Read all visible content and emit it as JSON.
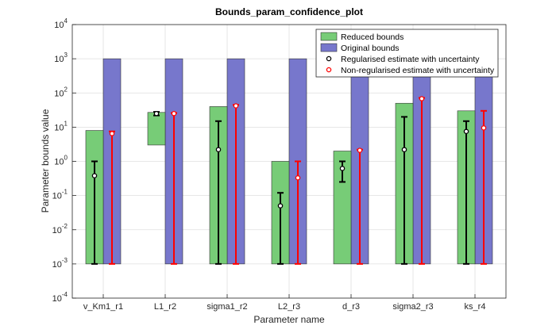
{
  "chart_data": {
    "type": "bar",
    "title": "Bounds_param_confidence_plot",
    "xlabel": "Parameter name",
    "ylabel": "Parameter bounds value",
    "yscale": "log",
    "ylim": [
      0.0001,
      10000
    ],
    "y_ticks": [
      {
        "value": 0.0001,
        "base": "10",
        "exp": "-4"
      },
      {
        "value": 0.001,
        "base": "10",
        "exp": "-3"
      },
      {
        "value": 0.01,
        "base": "10",
        "exp": "-2"
      },
      {
        "value": 0.1,
        "base": "10",
        "exp": "-1"
      },
      {
        "value": 1,
        "base": "10",
        "exp": "0"
      },
      {
        "value": 10,
        "base": "10",
        "exp": "1"
      },
      {
        "value": 100,
        "base": "10",
        "exp": "2"
      },
      {
        "value": 1000,
        "base": "10",
        "exp": "3"
      },
      {
        "value": 10000,
        "base": "10",
        "exp": "4"
      }
    ],
    "grid": true,
    "legend_position": "top-right",
    "categories": [
      "v_Km1_r1",
      "L1_r2",
      "sigma1_r2",
      "L2_r3",
      "d_r3",
      "sigma2_r3",
      "ks_r4"
    ],
    "series": [
      {
        "name": "Reduced bounds",
        "color": "#77cc77",
        "lower": [
          0.001,
          3,
          0.001,
          0.001,
          0.001,
          0.001,
          0.001
        ],
        "upper": [
          8,
          27,
          40,
          1,
          2,
          50,
          30
        ]
      },
      {
        "name": "Original bounds",
        "color": "#7777cc",
        "lower": [
          0.001,
          0.001,
          0.001,
          0.001,
          0.001,
          0.001,
          0.001
        ],
        "upper": [
          1000,
          1000,
          1000,
          1000,
          1000,
          1000,
          1000
        ]
      },
      {
        "name": "Regularised estimate with uncertainty",
        "color": "#000000",
        "values": [
          0.38,
          25,
          2.2,
          0.05,
          0.62,
          2.2,
          7.5
        ],
        "err_low": [
          0.001,
          22,
          0.001,
          0.001,
          0.25,
          0.001,
          0.001
        ],
        "err_high": [
          1,
          28,
          15,
          0.12,
          1,
          20,
          15
        ]
      },
      {
        "name": "Non-regularised estimate with uncertainty",
        "color": "#ff0000",
        "values": [
          6.5,
          25,
          42,
          0.33,
          2.1,
          68,
          9.5
        ],
        "err_low": [
          0.001,
          0.001,
          0.001,
          0.001,
          0.001,
          0.001,
          0.001
        ],
        "err_high": [
          7.5,
          26,
          45,
          1,
          2.2,
          72,
          30
        ]
      }
    ]
  }
}
